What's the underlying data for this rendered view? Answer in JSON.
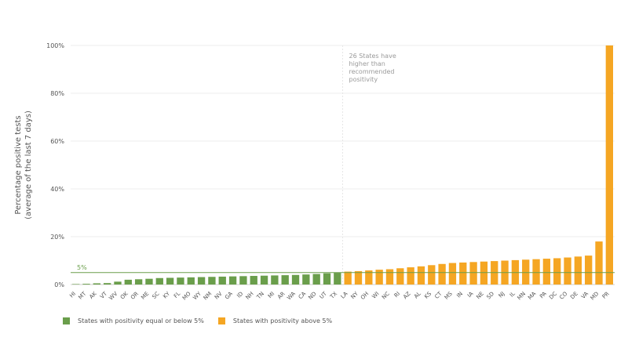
{
  "colors": {
    "green": "#6a9e4b",
    "orange": "#f5a623",
    "grid": "#ececec",
    "axis": "#cccccc",
    "text": "#555555",
    "annotation": "#9a9a9a"
  },
  "chart_data": {
    "type": "bar",
    "ylabel_lines": [
      "Percentage positive tests",
      "(average of the last 7 days)"
    ],
    "ylim": [
      0,
      100
    ],
    "yticks": [
      0,
      20,
      40,
      60,
      80,
      100
    ],
    "ytick_labels": [
      "0%",
      "20%",
      "40%",
      "60%",
      "80%",
      "100%"
    ],
    "grid": true,
    "threshold": {
      "value": 5,
      "label": "5%"
    },
    "annotation": {
      "lines": [
        "26 States have",
        "higher than",
        "recommended",
        "positivity"
      ]
    },
    "categories": [
      "HI",
      "MT",
      "AK",
      "VT",
      "WV",
      "OK",
      "OR",
      "ME",
      "SC",
      "KY",
      "FL",
      "MO",
      "WY",
      "NM",
      "NV",
      "GA",
      "ID",
      "NH",
      "TN",
      "MI",
      "AR",
      "WA",
      "CA",
      "ND",
      "UT",
      "TX",
      "LA",
      "NY",
      "OH",
      "WI",
      "NC",
      "RI",
      "AZ",
      "AL",
      "KS",
      "CT",
      "MS",
      "IN",
      "IA",
      "NE",
      "SD",
      "NJ",
      "IL",
      "MN",
      "MA",
      "PA",
      "DC",
      "CO",
      "DE",
      "VA",
      "MD",
      "PR"
    ],
    "values": [
      0.1,
      0.3,
      0.5,
      0.6,
      1.2,
      2.0,
      2.2,
      2.4,
      2.7,
      2.8,
      2.9,
      3.0,
      3.1,
      3.2,
      3.3,
      3.4,
      3.5,
      3.6,
      3.7,
      3.8,
      3.9,
      4.0,
      4.2,
      4.4,
      4.7,
      4.9,
      5.4,
      5.6,
      5.9,
      6.2,
      6.4,
      6.8,
      7.2,
      7.6,
      8.1,
      8.6,
      9.0,
      9.2,
      9.4,
      9.6,
      9.8,
      10.0,
      10.2,
      10.4,
      10.6,
      10.8,
      11.0,
      11.3,
      11.7,
      12.1,
      18.0,
      100.0
    ],
    "legend": [
      {
        "label": "States with positivity equal or below 5%",
        "color": "#6a9e4b"
      },
      {
        "label": "States with positivity above 5%",
        "color": "#f5a623"
      }
    ],
    "legend_position": "bottom-left"
  }
}
